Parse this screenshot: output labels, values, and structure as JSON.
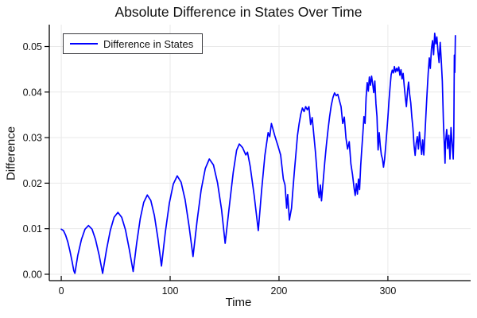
{
  "chart": {
    "title": "Absolute Difference in States Over Time",
    "xlabel": "Time",
    "ylabel": "Difference",
    "legend_label": "Difference in States"
  },
  "chart_data": {
    "type": "line",
    "title": "Absolute Difference in States Over Time",
    "xlabel": "Time",
    "ylabel": "Difference",
    "xlim": [
      -11,
      376
    ],
    "ylim": [
      -0.0014,
      0.0548
    ],
    "xticks": [
      0,
      100,
      200,
      300
    ],
    "xtick_labels": [
      "0",
      "100",
      "200",
      "300"
    ],
    "yticks": [
      0.0,
      0.01,
      0.02,
      0.03,
      0.04,
      0.05
    ],
    "ytick_labels": [
      "0.00",
      "0.01",
      "0.02",
      "0.03",
      "0.04",
      "0.05"
    ],
    "grid": true,
    "legend_position": "top-left",
    "colors": {
      "line": "#0000ff",
      "grid": "#e9e9e9",
      "axis": "#000000",
      "text": "#111111"
    },
    "series": [
      {
        "name": "Difference in States",
        "color": "#0000ff",
        "points": [
          [
            0,
            0.0099
          ],
          [
            2,
            0.0096
          ],
          [
            4,
            0.0086
          ],
          [
            6,
            0.0071
          ],
          [
            8,
            0.0051
          ],
          [
            10,
            0.0027
          ],
          [
            11.5,
            0.0008
          ],
          [
            12.5,
            0.0002
          ],
          [
            15.25,
            0.0042
          ],
          [
            18.5,
            0.0076
          ],
          [
            21.75,
            0.0099
          ],
          [
            25,
            0.0107
          ],
          [
            28.25,
            0.0099
          ],
          [
            31.5,
            0.0076
          ],
          [
            34.75,
            0.0042
          ],
          [
            38,
            0.0002
          ],
          [
            41.5,
            0.0053
          ],
          [
            45,
            0.0096
          ],
          [
            48.5,
            0.0125
          ],
          [
            52,
            0.0136
          ],
          [
            55.5,
            0.0125
          ],
          [
            59,
            0.0097
          ],
          [
            62.5,
            0.0054
          ],
          [
            66,
            0.0006
          ],
          [
            69.25,
            0.0068
          ],
          [
            72.5,
            0.0122
          ],
          [
            75.75,
            0.0158
          ],
          [
            79,
            0.0174
          ],
          [
            82.25,
            0.0162
          ],
          [
            85.5,
            0.0129
          ],
          [
            88.75,
            0.0079
          ],
          [
            92,
            0.0018
          ],
          [
            95.6,
            0.0093
          ],
          [
            99.25,
            0.0156
          ],
          [
            102.9,
            0.0198
          ],
          [
            106.5,
            0.0216
          ],
          [
            110.1,
            0.0202
          ],
          [
            113.75,
            0.0164
          ],
          [
            117.4,
            0.0106
          ],
          [
            121,
            0.0039
          ],
          [
            124.75,
            0.0117
          ],
          [
            128.5,
            0.0185
          ],
          [
            132.25,
            0.0232
          ],
          [
            136,
            0.0253
          ],
          [
            139.75,
            0.024
          ],
          [
            143.5,
            0.0201
          ],
          [
            147.25,
            0.0142
          ],
          [
            150.5,
            0.0068
          ],
          [
            154.5,
            0.0153
          ],
          [
            158,
            0.0224
          ],
          [
            161,
            0.0272
          ],
          [
            163.5,
            0.0286
          ],
          [
            166.5,
            0.0278
          ],
          [
            169.5,
            0.0262
          ],
          [
            171,
            0.0268
          ],
          [
            173.5,
            0.0237
          ],
          [
            177.25,
            0.0172
          ],
          [
            181,
            0.0096
          ],
          [
            184,
            0.0185
          ],
          [
            187,
            0.0261
          ],
          [
            190,
            0.0311
          ],
          [
            191.5,
            0.0302
          ],
          [
            193,
            0.0331
          ],
          [
            196,
            0.0305
          ],
          [
            199,
            0.0282
          ],
          [
            201.5,
            0.0262
          ],
          [
            204,
            0.0209
          ],
          [
            205.5,
            0.0196
          ],
          [
            207,
            0.0145
          ],
          [
            208,
            0.0175
          ],
          [
            209.5,
            0.0119
          ],
          [
            210.5,
            0.0132
          ],
          [
            211.5,
            0.0145
          ],
          [
            212.5,
            0.0178
          ],
          [
            214,
            0.0222
          ],
          [
            215.5,
            0.0264
          ],
          [
            217,
            0.0305
          ],
          [
            218.5,
            0.0331
          ],
          [
            220,
            0.0352
          ],
          [
            221.5,
            0.0365
          ],
          [
            223,
            0.0357
          ],
          [
            224.5,
            0.0368
          ],
          [
            226,
            0.0361
          ],
          [
            227.5,
            0.0368
          ],
          [
            229,
            0.0329
          ],
          [
            230.5,
            0.0344
          ],
          [
            232,
            0.0305
          ],
          [
            233.5,
            0.0268
          ],
          [
            235,
            0.0221
          ],
          [
            236,
            0.0183
          ],
          [
            237,
            0.0168
          ],
          [
            238,
            0.0196
          ],
          [
            239,
            0.0161
          ],
          [
            240.5,
            0.0202
          ],
          [
            242,
            0.0246
          ],
          [
            243.5,
            0.0283
          ],
          [
            245,
            0.0317
          ],
          [
            246.5,
            0.0346
          ],
          [
            248,
            0.0371
          ],
          [
            249.5,
            0.0388
          ],
          [
            251,
            0.0398
          ],
          [
            252.5,
            0.0392
          ],
          [
            254,
            0.0395
          ],
          [
            255.5,
            0.0381
          ],
          [
            257,
            0.0368
          ],
          [
            258.5,
            0.0331
          ],
          [
            260,
            0.0345
          ],
          [
            261.5,
            0.0299
          ],
          [
            263,
            0.0275
          ],
          [
            264.5,
            0.0291
          ],
          [
            266,
            0.0242
          ],
          [
            267.5,
            0.0219
          ],
          [
            269,
            0.0188
          ],
          [
            270,
            0.0173
          ],
          [
            271,
            0.0199
          ],
          [
            272,
            0.0176
          ],
          [
            273,
            0.0209
          ],
          [
            274,
            0.0186
          ],
          [
            275,
            0.0238
          ],
          [
            276,
            0.0273
          ],
          [
            277,
            0.0308
          ],
          [
            278,
            0.0346
          ],
          [
            279,
            0.0331
          ],
          [
            280,
            0.0388
          ],
          [
            281,
            0.0421
          ],
          [
            282,
            0.0402
          ],
          [
            283,
            0.0433
          ],
          [
            284,
            0.0415
          ],
          [
            285,
            0.0435
          ],
          [
            286,
            0.0419
          ],
          [
            287,
            0.0399
          ],
          [
            288,
            0.0424
          ],
          [
            289,
            0.0374
          ],
          [
            290,
            0.0346
          ],
          [
            291,
            0.0273
          ],
          [
            292,
            0.0311
          ],
          [
            293,
            0.0283
          ],
          [
            294,
            0.0262
          ],
          [
            295,
            0.0253
          ],
          [
            296,
            0.0235
          ],
          [
            297,
            0.0253
          ],
          [
            298,
            0.0282
          ],
          [
            299,
            0.0312
          ],
          [
            300,
            0.0344
          ],
          [
            301,
            0.0381
          ],
          [
            302,
            0.0412
          ],
          [
            303,
            0.0438
          ],
          [
            304,
            0.0448
          ],
          [
            305,
            0.0442
          ],
          [
            306,
            0.0456
          ],
          [
            307,
            0.0444
          ],
          [
            308,
            0.0452
          ],
          [
            309,
            0.0446
          ],
          [
            310,
            0.0455
          ],
          [
            311,
            0.0437
          ],
          [
            312,
            0.0449
          ],
          [
            313,
            0.0429
          ],
          [
            314,
            0.0441
          ],
          [
            315,
            0.0413
          ],
          [
            316,
            0.0389
          ],
          [
            317,
            0.0368
          ],
          [
            318,
            0.0401
          ],
          [
            319,
            0.0422
          ],
          [
            320,
            0.0395
          ],
          [
            321,
            0.0376
          ],
          [
            322,
            0.0346
          ],
          [
            323,
            0.0321
          ],
          [
            324,
            0.0283
          ],
          [
            325,
            0.0261
          ],
          [
            326,
            0.0288
          ],
          [
            327,
            0.0302
          ],
          [
            328,
            0.0275
          ],
          [
            329,
            0.0312
          ],
          [
            330,
            0.0286
          ],
          [
            331,
            0.0263
          ],
          [
            332,
            0.0295
          ],
          [
            333,
            0.0262
          ],
          [
            334,
            0.0306
          ],
          [
            335,
            0.0355
          ],
          [
            336,
            0.0398
          ],
          [
            337,
            0.0441
          ],
          [
            338,
            0.0475
          ],
          [
            339,
            0.0452
          ],
          [
            340,
            0.0495
          ],
          [
            341,
            0.0513
          ],
          [
            342,
            0.0482
          ],
          [
            343,
            0.0529
          ],
          [
            344,
            0.0506
          ],
          [
            345,
            0.0521
          ],
          [
            346,
            0.0489
          ],
          [
            347,
            0.0465
          ],
          [
            348,
            0.0509
          ],
          [
            349,
            0.0471
          ],
          [
            350,
            0.0423
          ],
          [
            351,
            0.0332
          ],
          [
            352,
            0.0276
          ],
          [
            352.5,
            0.0244
          ],
          [
            353,
            0.0291
          ],
          [
            354,
            0.0318
          ],
          [
            355,
            0.0276
          ],
          [
            356,
            0.0305
          ],
          [
            357,
            0.0253
          ],
          [
            358,
            0.0322
          ],
          [
            359,
            0.0287
          ],
          [
            360,
            0.0253
          ],
          [
            360.5,
            0.0302
          ],
          [
            361,
            0.0481
          ],
          [
            361.5,
            0.0443
          ],
          [
            362,
            0.0524
          ]
        ]
      }
    ]
  }
}
